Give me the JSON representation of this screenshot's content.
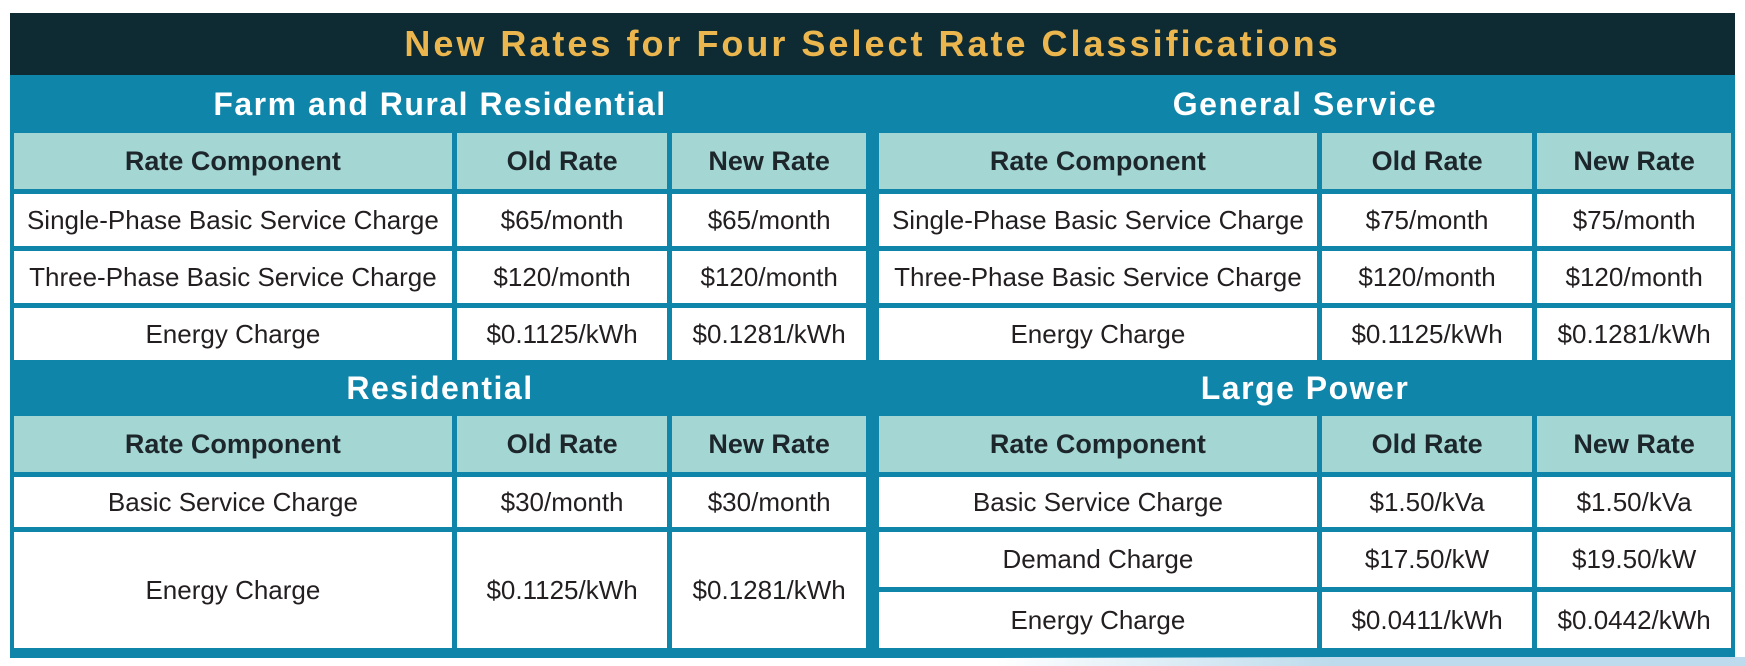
{
  "title": "New Rates for Four Select Rate Classifications",
  "columns": [
    "Rate Component",
    "Old Rate",
    "New Rate"
  ],
  "colors": {
    "title_band_bg": "#0e2b33",
    "title_text": "#ecb64e",
    "table_frame_teal": "#0f85a9",
    "header_cell_bg": "#a4d6d4",
    "cell_bg": "#ffffff",
    "cell_text": "#231f20",
    "section_title_text": "#ffffff",
    "bottom_accent": "#bddbec"
  },
  "sections": [
    {
      "title": "Farm and Rural Residential",
      "rows": [
        [
          "Single-Phase Basic Service Charge",
          "$65/month",
          "$65/month"
        ],
        [
          "Three-Phase Basic Service Charge",
          "$120/month",
          "$120/month"
        ],
        [
          "Energy Charge",
          "$0.1125/kWh",
          "$0.1281/kWh"
        ]
      ]
    },
    {
      "title": "General Service",
      "rows": [
        [
          "Single-Phase Basic Service Charge",
          "$75/month",
          "$75/month"
        ],
        [
          "Three-Phase Basic Service Charge",
          "$120/month",
          "$120/month"
        ],
        [
          "Energy Charge",
          "$0.1125/kWh",
          "$0.1281/kWh"
        ]
      ]
    },
    {
      "title": "Residential",
      "rows": [
        [
          "Basic Service Charge",
          "$30/month",
          "$30/month"
        ],
        [
          "Energy Charge",
          "$0.1125/kWh",
          "$0.1281/kWh"
        ]
      ]
    },
    {
      "title": "Large Power",
      "rows": [
        [
          "Basic Service Charge",
          "$1.50/kVa",
          "$1.50/kVa"
        ],
        [
          "Demand Charge",
          "$17.50/kW",
          "$19.50/kW"
        ],
        [
          "Energy Charge",
          "$0.0411/kWh",
          "$0.0442/kWh"
        ]
      ]
    }
  ]
}
